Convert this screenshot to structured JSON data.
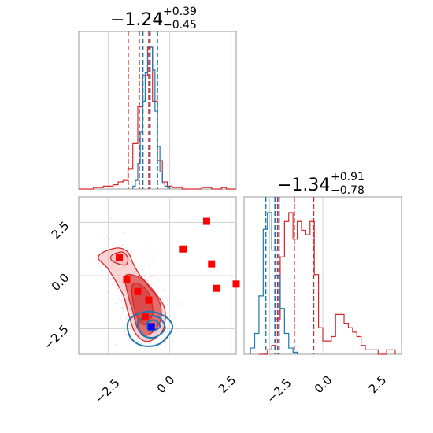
{
  "colors": {
    "red": "#d62728",
    "red_fill_dark": "#d94a4a",
    "red_fill_light": "#f2b3b3",
    "blue": "#1f77b4",
    "square_red": "#ff0000",
    "square_blue": "#0000ff",
    "grid": "#cccccc",
    "scatter_pink": "#f5b8d2",
    "scatter_blue": "#9ed4e8"
  },
  "chart_data": [
    {
      "type": "histogram",
      "panel": "top-left",
      "title": {
        "main": "−1.24",
        "sup": "+0.39",
        "sub": "−0.45"
      },
      "xlim": [
        -3.7,
        2.7
      ],
      "grid": true,
      "series": [
        {
          "color": "red",
          "bin_edges": [
            -3.7,
            -3.5,
            -3.3,
            -3.1,
            -2.9,
            -2.7,
            -2.5,
            -2.3,
            -2.1,
            -1.9,
            -1.7,
            -1.5,
            -1.3,
            -1.1,
            -0.9,
            -0.7,
            -0.5,
            -0.3,
            -0.1,
            0.1,
            0.3,
            0.5,
            0.7,
            0.9,
            1.1,
            1.3,
            1.5,
            1.7,
            1.9,
            2.1,
            2.3,
            2.5,
            2.7
          ],
          "counts": [
            0,
            0,
            0,
            1,
            1,
            2,
            2,
            3,
            5,
            6,
            14,
            32,
            58,
            80,
            100,
            62,
            20,
            5,
            2,
            1,
            1,
            0,
            0,
            0,
            0,
            1,
            1,
            0,
            0,
            1,
            0,
            0
          ],
          "quantiles": [
            -1.69,
            -1.24,
            -0.85
          ]
        },
        {
          "color": "blue",
          "bin_edges": [
            -1.5,
            -1.4,
            -1.3,
            -1.2,
            -1.1,
            -1.0,
            -0.9,
            -0.8,
            -0.7,
            -0.6,
            -0.5,
            -0.4,
            -0.3,
            -0.2,
            -0.1,
            0.0
          ],
          "counts": [
            2,
            6,
            18,
            40,
            62,
            82,
            96,
            100,
            84,
            55,
            30,
            12,
            4,
            2,
            1
          ],
          "quantiles": [
            -1.09,
            -0.8,
            -0.5
          ]
        }
      ]
    },
    {
      "type": "histogram",
      "panel": "bottom-right",
      "title": {
        "main": "−1.34",
        "sup": "+0.91",
        "sub": "−0.78"
      },
      "xlim": [
        -3.7,
        3.7
      ],
      "xticks": [
        "−2.5",
        "0.0",
        "2.5"
      ],
      "grid": true,
      "series": [
        {
          "color": "red",
          "bin_edges": [
            -3.0,
            -2.8,
            -2.6,
            -2.4,
            -2.2,
            -2.0,
            -1.8,
            -1.6,
            -1.4,
            -1.2,
            -1.0,
            -0.8,
            -0.6,
            -0.4,
            -0.2,
            0.0,
            0.2,
            0.4,
            0.6,
            0.8,
            1.0,
            1.2,
            1.4,
            1.6,
            1.8,
            2.0,
            2.2,
            2.4,
            2.6,
            2.8,
            3.0,
            3.2,
            3.4
          ],
          "counts": [
            0,
            0,
            1,
            2,
            8,
            22,
            30,
            32,
            26,
            30,
            28,
            27,
            30,
            18,
            6,
            3,
            3,
            4,
            9,
            9,
            7,
            6,
            5,
            4,
            2,
            1,
            1,
            1,
            0,
            0,
            1,
            1
          ],
          "quantiles": [
            -2.12,
            -1.34,
            -0.43
          ]
        },
        {
          "color": "blue",
          "bin_edges": [
            -3.4,
            -3.2,
            -3.0,
            -2.8,
            -2.6,
            -2.4,
            -2.2,
            -2.0,
            -1.8,
            -1.6,
            -1.4,
            -1.2
          ],
          "counts": [
            3,
            10,
            28,
            60,
            68,
            50,
            38,
            22,
            10,
            3,
            1
          ],
          "quantiles": [
            -2.68,
            -2.25,
            -2.05
          ]
        }
      ]
    },
    {
      "type": "scatter",
      "panel": "bottom-left",
      "xlim": [
        -3.7,
        2.7
      ],
      "ylim": [
        -3.7,
        3.7
      ],
      "xticks": [
        "−2.5",
        "0.0",
        "2.5"
      ],
      "yticks": [
        "2.5",
        "0.0",
        "−2.5"
      ],
      "grid": true,
      "red_squares": [
        {
          "x": -2.05,
          "y": 0.85
        },
        {
          "x": -1.75,
          "y": -0.2
        },
        {
          "x": -1.3,
          "y": -0.75
        },
        {
          "x": -0.85,
          "y": -1.15
        },
        {
          "x": -1.0,
          "y": -1.95
        },
        {
          "x": 0.55,
          "y": 1.25
        },
        {
          "x": 1.5,
          "y": 2.55
        },
        {
          "x": 1.7,
          "y": 0.55
        },
        {
          "x": 1.9,
          "y": -0.6
        },
        {
          "x": 2.7,
          "y": -0.4
        }
      ],
      "blue_squares": [
        {
          "x": -0.75,
          "y": -2.4
        }
      ],
      "red_contours": [
        [
          [
            -2.7,
            1.1
          ],
          [
            -2.1,
            1.3
          ],
          [
            -1.7,
            1.1
          ],
          [
            -1.5,
            0.6
          ],
          [
            -1.2,
            0.0
          ],
          [
            -0.6,
            -0.8
          ],
          [
            -0.2,
            -1.6
          ],
          [
            -0.3,
            -2.6
          ],
          [
            -0.9,
            -3.1
          ],
          [
            -1.4,
            -2.7
          ],
          [
            -1.7,
            -1.7
          ],
          [
            -1.9,
            -0.9
          ],
          [
            -2.5,
            0.3
          ],
          [
            -2.9,
            0.8
          ]
        ],
        [
          [
            -2.3,
            1.0
          ],
          [
            -1.9,
            1.1
          ],
          [
            -1.7,
            0.8
          ],
          [
            -1.8,
            0.5
          ],
          [
            -2.2,
            0.6
          ],
          [
            -2.4,
            0.8
          ]
        ],
        [
          [
            -1.8,
            0.0
          ],
          [
            -1.2,
            -0.1
          ],
          [
            -0.8,
            -0.6
          ],
          [
            -0.4,
            -1.3
          ],
          [
            -0.4,
            -2.2
          ],
          [
            -0.9,
            -2.8
          ],
          [
            -1.3,
            -2.5
          ],
          [
            -1.5,
            -1.7
          ],
          [
            -1.7,
            -0.9
          ]
        ],
        [
          [
            -1.5,
            -0.4
          ],
          [
            -1.1,
            -0.5
          ],
          [
            -0.8,
            -1.0
          ],
          [
            -0.7,
            -1.8
          ],
          [
            -1.0,
            -2.3
          ],
          [
            -1.3,
            -2.0
          ],
          [
            -1.5,
            -1.2
          ]
        ]
      ],
      "blue_contours": [
        [
          [
            -1.7,
            -2.2
          ],
          [
            -1.3,
            -1.8
          ],
          [
            -0.7,
            -1.7
          ],
          [
            -0.1,
            -2.0
          ],
          [
            0.1,
            -2.5
          ],
          [
            -0.4,
            -3.2
          ],
          [
            -1.1,
            -3.3
          ],
          [
            -1.6,
            -2.9
          ]
        ],
        [
          [
            -1.3,
            -2.2
          ],
          [
            -0.9,
            -1.9
          ],
          [
            -0.4,
            -2.0
          ],
          [
            -0.2,
            -2.5
          ],
          [
            -0.6,
            -2.9
          ],
          [
            -1.1,
            -2.8
          ]
        ],
        [
          [
            -0.9,
            -2.2
          ],
          [
            -0.6,
            -2.1
          ],
          [
            -0.4,
            -2.4
          ],
          [
            -0.7,
            -2.6
          ],
          [
            -0.9,
            -2.5
          ]
        ]
      ]
    }
  ]
}
